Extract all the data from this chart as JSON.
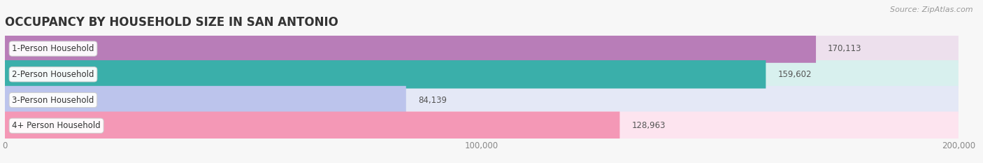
{
  "title": "OCCUPANCY BY HOUSEHOLD SIZE IN SAN ANTONIO",
  "source": "Source: ZipAtlas.com",
  "categories": [
    "1-Person Household",
    "2-Person Household",
    "3-Person Household",
    "4+ Person Household"
  ],
  "values": [
    170113,
    159602,
    84139,
    128963
  ],
  "bar_colors": [
    "#b87db8",
    "#3aafaa",
    "#bcc4ec",
    "#f498b6"
  ],
  "bar_bg_colors": [
    "#ede0ed",
    "#d8f0ee",
    "#e4e8f6",
    "#fde4ef"
  ],
  "value_labels": [
    "170,113",
    "159,602",
    "84,139",
    "128,963"
  ],
  "xlim": [
    0,
    200000
  ],
  "xticks": [
    0,
    100000,
    200000
  ],
  "xticklabels": [
    "0",
    "100,000",
    "200,000"
  ],
  "background_color": "#f7f7f7",
  "title_fontsize": 12,
  "label_fontsize": 8.5,
  "value_fontsize": 8.5,
  "source_fontsize": 8
}
